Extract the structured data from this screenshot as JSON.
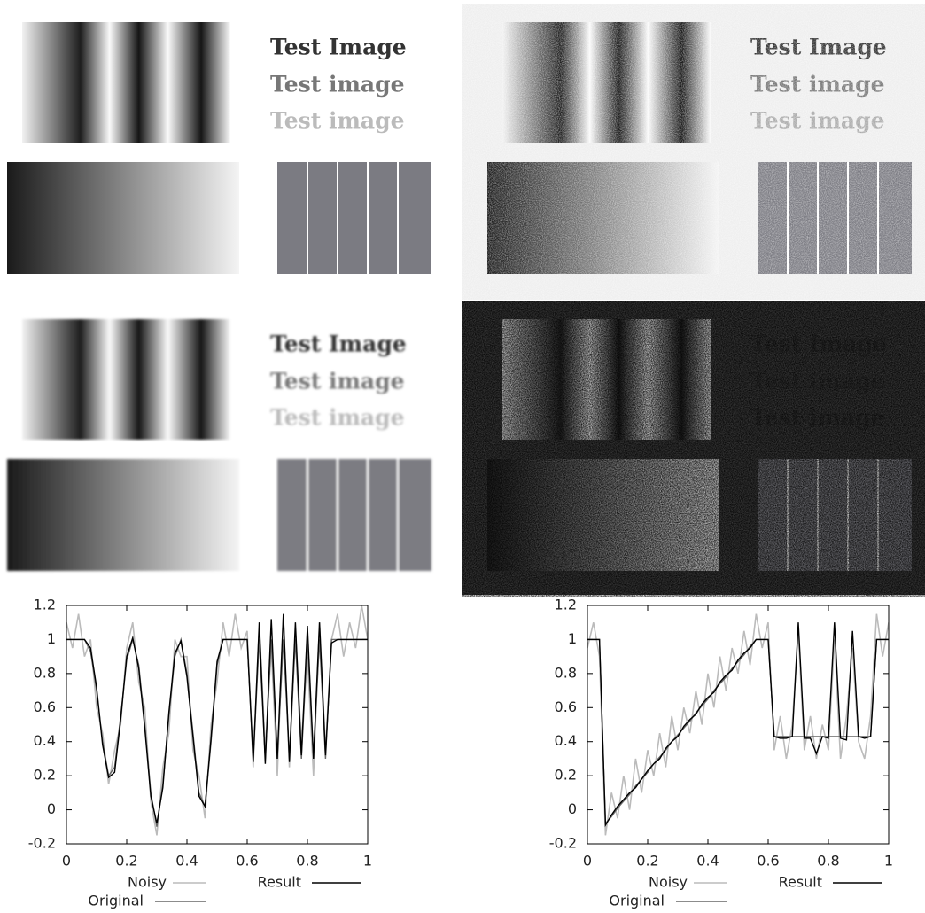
{
  "panels": [
    {
      "texts": [
        "Test Image",
        "Test image",
        "Test image"
      ]
    },
    {
      "texts": [
        "Test Image",
        "Test image",
        "Test image"
      ]
    },
    {
      "texts": [
        "Test Image",
        "Test image",
        "Test image"
      ]
    },
    {
      "texts": [
        "Test Image",
        "Test image",
        "Test image"
      ]
    }
  ],
  "chart_data": [
    {
      "type": "line",
      "x": [
        0,
        0.02,
        0.04,
        0.06,
        0.08,
        0.1,
        0.12,
        0.14,
        0.16,
        0.18,
        0.2,
        0.22,
        0.24,
        0.26,
        0.28,
        0.3,
        0.32,
        0.34,
        0.36,
        0.38,
        0.4,
        0.42,
        0.44,
        0.46,
        0.48,
        0.5,
        0.52,
        0.54,
        0.56,
        0.58,
        0.6,
        0.62,
        0.64,
        0.66,
        0.68,
        0.7,
        0.72,
        0.74,
        0.76,
        0.78,
        0.8,
        0.82,
        0.84,
        0.86,
        0.88,
        0.9,
        0.92,
        0.94,
        0.96,
        0.98,
        1
      ],
      "xlim": [
        0,
        1
      ],
      "xticks": [
        0,
        0.2,
        0.4,
        0.6,
        0.8,
        1
      ],
      "ylim": [
        -0.2,
        1.2
      ],
      "yticks": [
        -0.2,
        0,
        0.2,
        0.4,
        0.6,
        0.8,
        1,
        1.2
      ],
      "series": [
        {
          "name": "Noisy",
          "color": "#bbbbbb",
          "values": [
            1.1,
            0.95,
            1.15,
            0.9,
            1.0,
            0.6,
            0.45,
            0.15,
            0.35,
            0.5,
            0.95,
            1.1,
            0.75,
            0.6,
            0.05,
            -0.15,
            0.25,
            0.45,
            1.0,
            0.9,
            0.9,
            0.35,
            0.2,
            -0.05,
            0.5,
            0.75,
            1.1,
            0.9,
            1.15,
            0.95,
            1.05,
            0.25,
            1.1,
            0.35,
            0.95,
            0.2,
            1.15,
            0.25,
            1.05,
            0.4,
            0.9,
            0.2,
            1.1,
            0.35,
            1.0,
            1.15,
            0.9,
            1.1,
            0.95,
            1.2,
            1.0
          ]
        },
        {
          "name": "Original",
          "color": "#666666",
          "values": [
            1,
            1,
            1,
            1,
            0.93,
            0.7,
            0.4,
            0.2,
            0.25,
            0.55,
            0.88,
            1,
            0.85,
            0.5,
            0.1,
            -0.1,
            0.15,
            0.55,
            0.9,
            1,
            0.8,
            0.45,
            0.1,
            0.02,
            0.4,
            0.85,
            1,
            1,
            1,
            1,
            1,
            0.3,
            1,
            0.3,
            1,
            0.3,
            1,
            0.3,
            1,
            0.3,
            1,
            0.3,
            1,
            0.3,
            1,
            1,
            1,
            1,
            1,
            1,
            1
          ]
        },
        {
          "name": "Result",
          "color": "#000000",
          "values": [
            1,
            1,
            1,
            1,
            0.95,
            0.72,
            0.38,
            0.19,
            0.22,
            0.53,
            0.9,
            1.01,
            0.83,
            0.48,
            0.08,
            -0.08,
            0.13,
            0.57,
            0.92,
            0.99,
            0.78,
            0.43,
            0.08,
            0.02,
            0.42,
            0.87,
            1,
            1,
            1,
            1,
            1,
            0.28,
            1.1,
            0.27,
            1.12,
            0.3,
            1.15,
            0.28,
            1.1,
            0.32,
            1.08,
            0.3,
            1.1,
            0.32,
            0.98,
            1,
            1,
            1,
            1,
            1,
            1
          ]
        }
      ]
    },
    {
      "type": "line",
      "x": [
        0,
        0.02,
        0.04,
        0.06,
        0.08,
        0.1,
        0.12,
        0.14,
        0.16,
        0.18,
        0.2,
        0.22,
        0.24,
        0.26,
        0.28,
        0.3,
        0.32,
        0.34,
        0.36,
        0.38,
        0.4,
        0.42,
        0.44,
        0.46,
        0.48,
        0.5,
        0.52,
        0.54,
        0.56,
        0.58,
        0.6,
        0.62,
        0.64,
        0.66,
        0.68,
        0.7,
        0.72,
        0.74,
        0.76,
        0.78,
        0.8,
        0.82,
        0.84,
        0.86,
        0.88,
        0.9,
        0.92,
        0.94,
        0.96,
        0.98,
        1
      ],
      "xlim": [
        0,
        1
      ],
      "xticks": [
        0,
        0.2,
        0.4,
        0.6,
        0.8,
        1
      ],
      "ylim": [
        -0.2,
        1.2
      ],
      "yticks": [
        -0.2,
        0,
        0.2,
        0.4,
        0.6,
        0.8,
        1,
        1.2
      ],
      "series": [
        {
          "name": "Noisy",
          "color": "#bbbbbb",
          "values": [
            0.95,
            1.1,
            0.9,
            -0.15,
            0.1,
            -0.05,
            0.2,
            0.0,
            0.3,
            0.1,
            0.35,
            0.2,
            0.45,
            0.25,
            0.55,
            0.35,
            0.6,
            0.45,
            0.7,
            0.5,
            0.8,
            0.6,
            0.9,
            0.7,
            0.95,
            0.8,
            1.05,
            0.85,
            1.15,
            0.95,
            1.1,
            0.35,
            0.55,
            0.3,
            0.5,
            1.05,
            0.35,
            0.55,
            0.3,
            0.5,
            0.35,
            1.0,
            0.3,
            0.55,
            0.95,
            0.4,
            0.3,
            0.55,
            1.15,
            0.9,
            1.1
          ]
        },
        {
          "name": "Original",
          "color": "#666666",
          "values": [
            1,
            1,
            1,
            -0.08,
            -0.04,
            0.01,
            0.05,
            0.09,
            0.14,
            0.18,
            0.22,
            0.27,
            0.31,
            0.35,
            0.4,
            0.44,
            0.48,
            0.52,
            0.57,
            0.61,
            0.65,
            0.7,
            0.74,
            0.78,
            0.83,
            0.87,
            0.91,
            0.96,
            1,
            1,
            1,
            0.43,
            0.43,
            0.43,
            0.43,
            0.43,
            0.43,
            0.43,
            0.43,
            0.43,
            0.43,
            0.43,
            0.43,
            0.43,
            0.43,
            0.43,
            0.43,
            0.43,
            1,
            1,
            1
          ]
        },
        {
          "name": "Result",
          "color": "#000000",
          "values": [
            1,
            1,
            1,
            -0.09,
            -0.03,
            0.02,
            0.06,
            0.1,
            0.13,
            0.18,
            0.23,
            0.27,
            0.3,
            0.36,
            0.4,
            0.43,
            0.49,
            0.53,
            0.56,
            0.62,
            0.66,
            0.69,
            0.75,
            0.79,
            0.82,
            0.88,
            0.92,
            0.95,
            1,
            1,
            1,
            0.43,
            0.42,
            0.42,
            0.43,
            1.1,
            0.42,
            0.42,
            0.33,
            0.43,
            0.42,
            1.1,
            0.42,
            0.41,
            1.05,
            0.43,
            0.42,
            0.43,
            1,
            1,
            1
          ]
        }
      ]
    }
  ]
}
